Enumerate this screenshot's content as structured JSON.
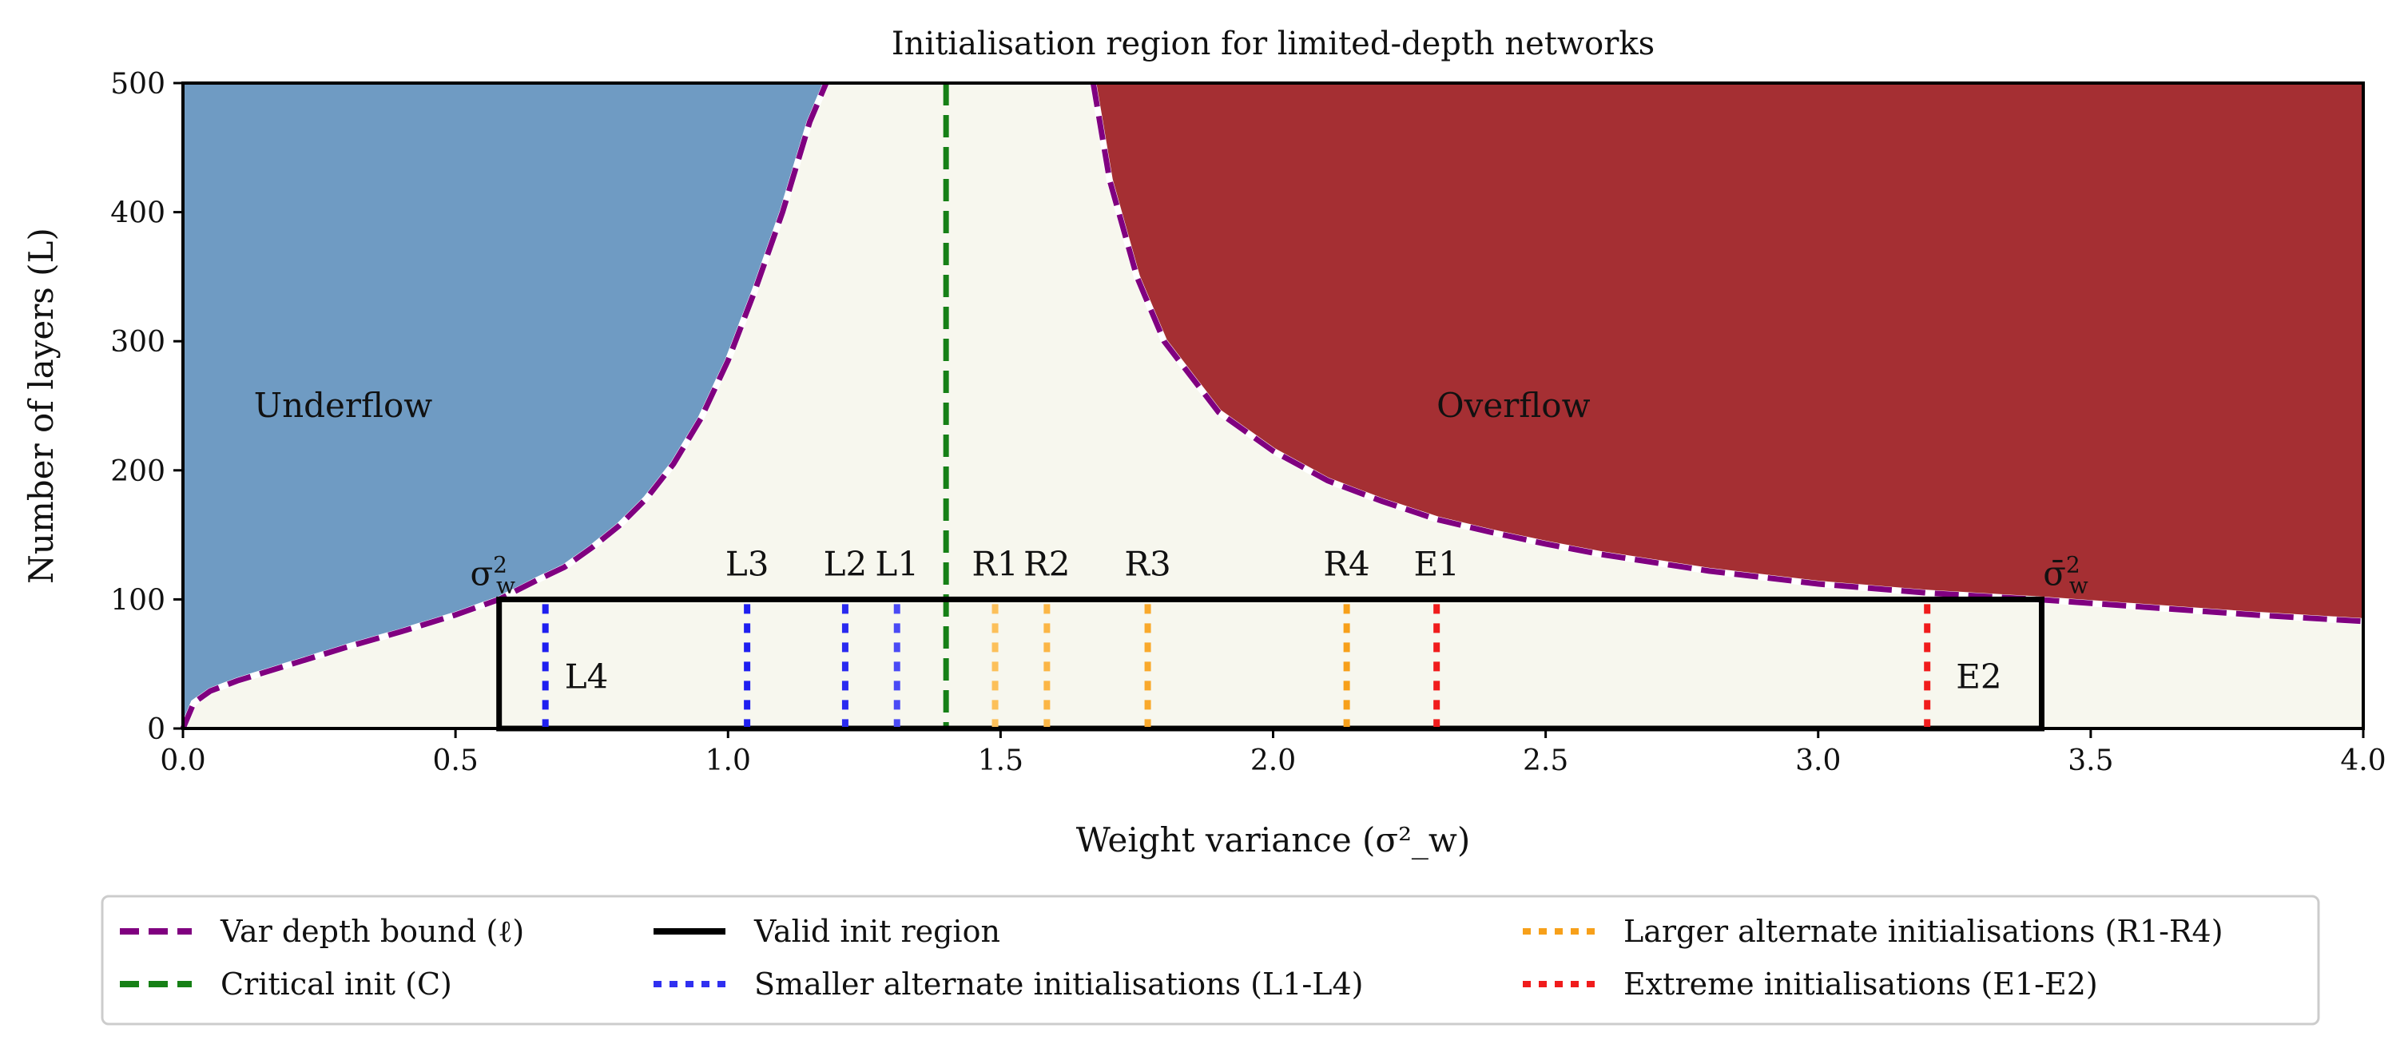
{
  "chart_data": {
    "type": "area",
    "title": "Initialisation region for limited-depth networks",
    "xlabel": "Weight variance (σ²_w)",
    "ylabel": "Number of layers (L)",
    "xlim": [
      0.0,
      4.0
    ],
    "ylim": [
      0,
      500
    ],
    "xticks": [
      0.0,
      0.5,
      1.0,
      1.5,
      2.0,
      2.5,
      3.0,
      3.5,
      4.0
    ],
    "xtick_labels": [
      "0.0",
      "0.5",
      "1.0",
      "1.5",
      "2.0",
      "2.5",
      "3.0",
      "3.5",
      "4.0"
    ],
    "yticks": [
      0,
      100,
      200,
      300,
      400,
      500
    ],
    "ytick_labels": [
      "0",
      "100",
      "200",
      "300",
      "400",
      "500"
    ],
    "grid": false,
    "legend_placement": "bottom, below plot, 3 columns",
    "regions": [
      {
        "label": "Underflow",
        "color": "#6f9bc3",
        "label_x": 0.13,
        "label_y": 250
      },
      {
        "label": "Overflow",
        "color": "#a52f33",
        "label_x": 2.3,
        "label_y": 250,
        "label_color": "#ffffff"
      }
    ],
    "background_color": "#f7f7ee",
    "depth_bound_left": {
      "x": [
        0.0,
        0.02,
        0.05,
        0.1,
        0.2,
        0.3,
        0.4,
        0.5,
        0.58,
        0.65,
        0.7,
        0.75,
        0.8,
        0.85,
        0.9,
        0.95,
        1.0,
        1.05,
        1.1,
        1.15,
        1.18
      ],
      "y": [
        0,
        20,
        29,
        37,
        50,
        63,
        75,
        88,
        100,
        115,
        125,
        140,
        157,
        178,
        205,
        240,
        285,
        340,
        400,
        470,
        500
      ]
    },
    "depth_bound_right": {
      "x": [
        1.67,
        1.7,
        1.75,
        1.8,
        1.9,
        2.0,
        2.1,
        2.2,
        2.3,
        2.4,
        2.5,
        2.6,
        2.8,
        3.0,
        3.2,
        3.4,
        3.6,
        3.8,
        4.0
      ],
      "y": [
        500,
        425,
        350,
        300,
        245,
        215,
        192,
        176,
        162,
        152,
        143,
        135,
        122,
        112,
        105,
        100,
        94,
        88,
        83
      ]
    },
    "valid_region": {
      "x0": 0.58,
      "x1": 3.41,
      "y0": 0,
      "y1": 100,
      "left_label": "σ²_w",
      "right_label": "σ̄²_w"
    },
    "critical_init": {
      "x": 1.4,
      "label": "C",
      "color": "#168016"
    },
    "initialisations": [
      {
        "label": "L4",
        "x": 0.665,
        "group": "smaller",
        "color": "#1f1ff0"
      },
      {
        "label": "L3",
        "x": 1.035,
        "group": "smaller",
        "color": "#1f1ff0"
      },
      {
        "label": "L2",
        "x": 1.215,
        "group": "smaller",
        "color": "#2a2af0"
      },
      {
        "label": "L1",
        "x": 1.31,
        "group": "smaller",
        "color": "#4a4af5"
      },
      {
        "label": "R1",
        "x": 1.49,
        "group": "larger",
        "color": "#fcc05a"
      },
      {
        "label": "R2",
        "x": 1.585,
        "group": "larger",
        "color": "#fbb646"
      },
      {
        "label": "R3",
        "x": 1.77,
        "group": "larger",
        "color": "#f9a92c"
      },
      {
        "label": "R4",
        "x": 2.135,
        "group": "larger",
        "color": "#f7a01a"
      },
      {
        "label": "E1",
        "x": 2.3,
        "group": "extreme",
        "color": "#f01c1c"
      },
      {
        "label": "E2",
        "x": 3.2,
        "group": "extreme",
        "color": "#f01c1c"
      }
    ],
    "legend": [
      {
        "label": "Var depth bound (ℓ)",
        "color": "#800080",
        "style": "dashed"
      },
      {
        "label": "Critical init (C)",
        "color": "#168016",
        "style": "dashed"
      },
      {
        "label": "Valid init region",
        "color": "#000000",
        "style": "solid"
      },
      {
        "label": "Smaller alternate initialisations (L1-L4)",
        "color": "#3030f0",
        "style": "dotted"
      },
      {
        "label": "Larger alternate initialisations (R1-R4)",
        "color": "#f7a01a",
        "style": "dotted"
      },
      {
        "label": "Extreme initialisations (E1-E2)",
        "color": "#f01c1c",
        "style": "dotted"
      }
    ]
  }
}
